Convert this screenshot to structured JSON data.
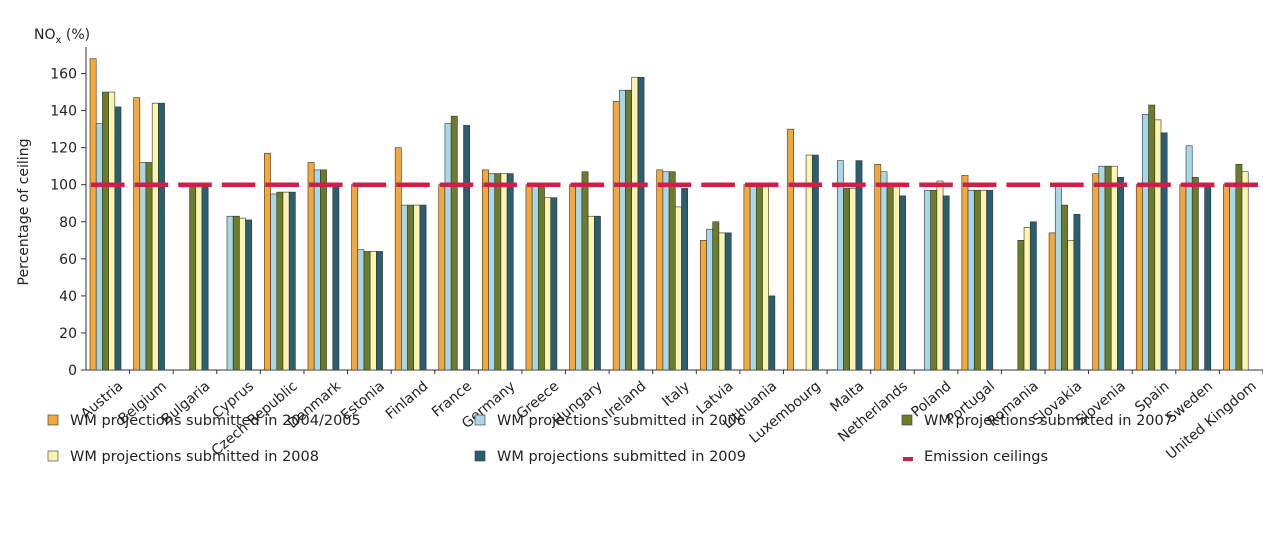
{
  "chart_data": {
    "type": "bar",
    "title": "NO",
    "title_subscript": "x",
    "title_suffix": " (%)",
    "ylabel": "Percentage of ceiling",
    "xlabel": "",
    "ylim": [
      0,
      170
    ],
    "yticks": [
      0,
      20,
      40,
      60,
      80,
      100,
      120,
      140,
      160
    ],
    "grid": false,
    "legend_position": "bottom",
    "categories": [
      "Austria",
      "Belgium",
      "Bulgaria",
      "Cyprus",
      "Czech Republic",
      "Denmark",
      "Estonia",
      "Finland",
      "France",
      "Germany",
      "Greece",
      "Hungary",
      "Ireland",
      "Italy",
      "Latvia",
      "Lithuania",
      "Luxembourg",
      "Malta",
      "Netherlands",
      "Poland",
      "Portugal",
      "Romania",
      "Slovakia",
      "Slovenia",
      "Spain",
      "Sweden",
      "United Kingdom"
    ],
    "series": [
      {
        "name": "WM projections submitted in 2004/2005",
        "color": "#f5a83a",
        "values": [
          168,
          147,
          null,
          null,
          117,
          112,
          100,
          120,
          100,
          108,
          100,
          100,
          145,
          108,
          70,
          100,
          130,
          null,
          111,
          null,
          105,
          null,
          74,
          106,
          100,
          100,
          100
        ]
      },
      {
        "name": "WM projections submitted in 2006",
        "color": "#a8d8e8",
        "values": [
          133,
          112,
          null,
          83,
          95,
          108,
          65,
          89,
          133,
          106,
          100,
          101,
          151,
          107,
          76,
          100,
          null,
          113,
          107,
          97,
          97,
          null,
          100,
          110,
          138,
          121,
          100
        ]
      },
      {
        "name": "WM projections submitted in 2007",
        "color": "#6b7d2a",
        "values": [
          150,
          112,
          100,
          83,
          96,
          108,
          64,
          89,
          137,
          106,
          100,
          107,
          151,
          107,
          80,
          100,
          null,
          98,
          100,
          97,
          97,
          70,
          89,
          110,
          143,
          104,
          111
        ]
      },
      {
        "name": "WM projections submitted in 2008",
        "color": "#fdf4b0",
        "values": [
          150,
          144,
          100,
          82,
          96,
          null,
          64,
          89,
          null,
          106,
          93,
          83,
          158,
          88,
          74,
          100,
          116,
          98,
          100,
          102,
          97,
          77,
          70,
          110,
          135,
          null,
          107
        ]
      },
      {
        "name": "WM projections submitted in 2009",
        "color": "#2a5f70",
        "values": [
          142,
          144,
          100,
          81,
          96,
          100,
          64,
          89,
          132,
          106,
          93,
          83,
          158,
          98,
          74,
          40,
          116,
          113,
          94,
          94,
          97,
          80,
          84,
          104,
          128,
          100,
          null
        ]
      }
    ],
    "reference_line": {
      "name": "Emission ceilings",
      "value": 100,
      "color": "#cc1f4a",
      "style": "dashed"
    }
  }
}
